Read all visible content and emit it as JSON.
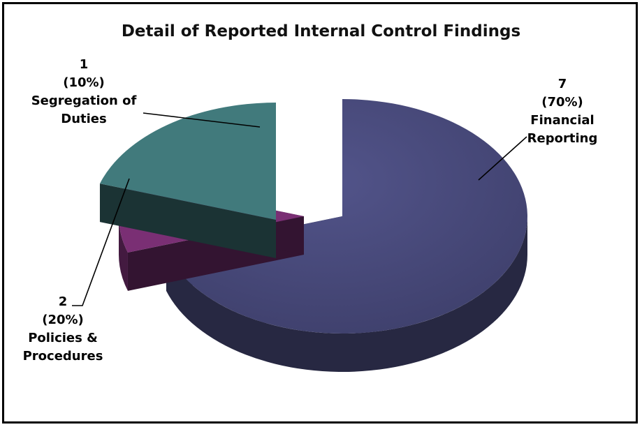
{
  "chart_data": {
    "type": "pie",
    "title": "Detail of Reported Internal Control Findings",
    "slices": [
      {
        "label": "Financial Reporting",
        "value": 7,
        "percent": "(70%)",
        "color": "#474878"
      },
      {
        "label": "Segregation of Duties",
        "value": 1,
        "percent": "(10%)",
        "color": "#7a2f74"
      },
      {
        "label": "Policies & Procedures",
        "value": 2,
        "percent": "(20%)",
        "color": "#417a7c"
      }
    ],
    "legend": "none",
    "style": "3d exploded"
  },
  "labels": {
    "financial": {
      "value": "7",
      "percent": "(70%)",
      "line1": "Financial",
      "line2": "Reporting"
    },
    "segregation": {
      "value": "1",
      "percent": "(10%)",
      "line1": "Segregation of",
      "line2": "Duties"
    },
    "policies": {
      "value": "2",
      "percent": "(20%)",
      "line1": "Policies &",
      "line2": "Procedures"
    }
  }
}
